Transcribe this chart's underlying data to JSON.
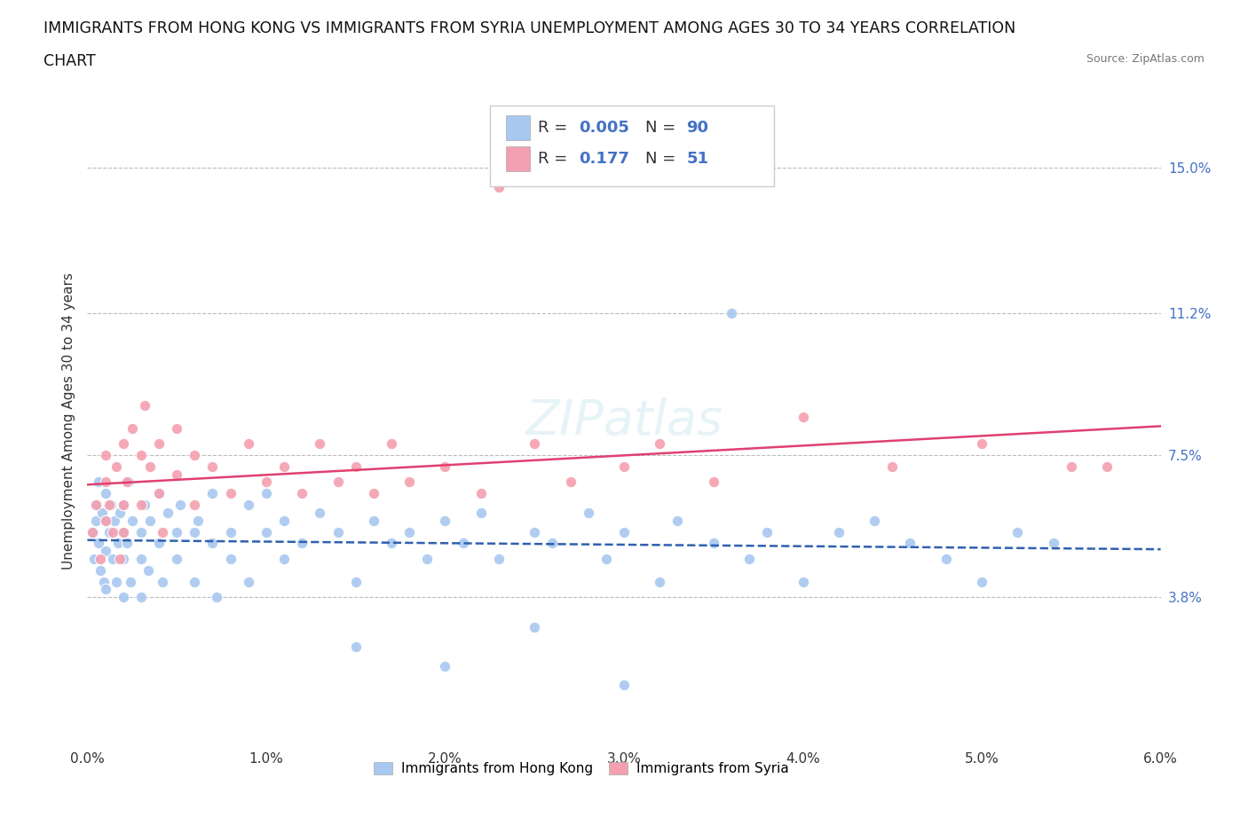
{
  "title_line1": "IMMIGRANTS FROM HONG KONG VS IMMIGRANTS FROM SYRIA UNEMPLOYMENT AMONG AGES 30 TO 34 YEARS CORRELATION",
  "title_line2": "CHART",
  "source_text": "Source: ZipAtlas.com",
  "ylabel": "Unemployment Among Ages 30 to 34 years",
  "xmin": 0.0,
  "xmax": 0.06,
  "ymin": 0.0,
  "ymax": 0.168,
  "ytick_vals": [
    0.038,
    0.075,
    0.112,
    0.15
  ],
  "ytick_labels": [
    "3.8%",
    "7.5%",
    "11.2%",
    "15.0%"
  ],
  "xtick_vals": [
    0.0,
    0.01,
    0.02,
    0.03,
    0.04,
    0.05,
    0.06
  ],
  "xtick_labels": [
    "0.0%",
    "1.0%",
    "2.0%",
    "3.0%",
    "4.0%",
    "5.0%",
    "6.0%"
  ],
  "hk_color": "#a8c8f0",
  "syria_color": "#f4a0b0",
  "hk_R": 0.005,
  "hk_N": 90,
  "syria_R": 0.177,
  "syria_N": 51,
  "hk_line_color": "#3060b0",
  "syria_line_color": "#e04070",
  "background_color": "#ffffff",
  "hk_x": [
    0.0003,
    0.0004,
    0.0005,
    0.0005,
    0.0006,
    0.0006,
    0.0007,
    0.0008,
    0.0009,
    0.001,
    0.001,
    0.001,
    0.001,
    0.0012,
    0.0013,
    0.0014,
    0.0015,
    0.0016,
    0.0017,
    0.0018,
    0.002,
    0.002,
    0.002,
    0.002,
    0.0022,
    0.0023,
    0.0024,
    0.0025,
    0.003,
    0.003,
    0.003,
    0.0032,
    0.0034,
    0.0035,
    0.004,
    0.004,
    0.0042,
    0.0045,
    0.005,
    0.005,
    0.0052,
    0.006,
    0.006,
    0.0062,
    0.007,
    0.007,
    0.0072,
    0.008,
    0.008,
    0.009,
    0.009,
    0.01,
    0.01,
    0.011,
    0.011,
    0.012,
    0.013,
    0.014,
    0.015,
    0.016,
    0.017,
    0.018,
    0.019,
    0.02,
    0.021,
    0.022,
    0.023,
    0.025,
    0.026,
    0.028,
    0.029,
    0.03,
    0.032,
    0.033,
    0.035,
    0.037,
    0.04,
    0.042,
    0.044,
    0.046,
    0.048,
    0.05,
    0.052,
    0.054,
    0.036,
    0.038,
    0.015,
    0.02,
    0.025,
    0.03
  ],
  "hk_y": [
    0.055,
    0.048,
    0.062,
    0.058,
    0.052,
    0.068,
    0.045,
    0.06,
    0.042,
    0.05,
    0.065,
    0.058,
    0.04,
    0.055,
    0.062,
    0.048,
    0.058,
    0.042,
    0.052,
    0.06,
    0.055,
    0.048,
    0.062,
    0.038,
    0.052,
    0.068,
    0.042,
    0.058,
    0.055,
    0.048,
    0.038,
    0.062,
    0.045,
    0.058,
    0.052,
    0.065,
    0.042,
    0.06,
    0.055,
    0.048,
    0.062,
    0.055,
    0.042,
    0.058,
    0.052,
    0.065,
    0.038,
    0.055,
    0.048,
    0.062,
    0.042,
    0.055,
    0.065,
    0.048,
    0.058,
    0.052,
    0.06,
    0.055,
    0.042,
    0.058,
    0.052,
    0.055,
    0.048,
    0.058,
    0.052,
    0.06,
    0.048,
    0.055,
    0.052,
    0.06,
    0.048,
    0.055,
    0.042,
    0.058,
    0.052,
    0.048,
    0.042,
    0.055,
    0.058,
    0.052,
    0.048,
    0.042,
    0.055,
    0.052,
    0.112,
    0.055,
    0.025,
    0.02,
    0.03,
    0.015
  ],
  "syria_x": [
    0.0003,
    0.0005,
    0.0007,
    0.001,
    0.001,
    0.001,
    0.0012,
    0.0014,
    0.0016,
    0.0018,
    0.002,
    0.002,
    0.002,
    0.0022,
    0.0025,
    0.003,
    0.003,
    0.0032,
    0.0035,
    0.004,
    0.004,
    0.0042,
    0.005,
    0.005,
    0.006,
    0.006,
    0.007,
    0.008,
    0.009,
    0.01,
    0.011,
    0.012,
    0.013,
    0.014,
    0.015,
    0.016,
    0.017,
    0.018,
    0.02,
    0.022,
    0.023,
    0.025,
    0.027,
    0.03,
    0.032,
    0.035,
    0.04,
    0.045,
    0.05,
    0.055,
    0.057
  ],
  "syria_y": [
    0.055,
    0.062,
    0.048,
    0.068,
    0.058,
    0.075,
    0.062,
    0.055,
    0.072,
    0.048,
    0.062,
    0.078,
    0.055,
    0.068,
    0.082,
    0.075,
    0.062,
    0.088,
    0.072,
    0.065,
    0.078,
    0.055,
    0.07,
    0.082,
    0.075,
    0.062,
    0.072,
    0.065,
    0.078,
    0.068,
    0.072,
    0.065,
    0.078,
    0.068,
    0.072,
    0.065,
    0.078,
    0.068,
    0.072,
    0.065,
    0.145,
    0.078,
    0.068,
    0.072,
    0.078,
    0.068,
    0.085,
    0.072,
    0.078,
    0.072,
    0.072
  ]
}
